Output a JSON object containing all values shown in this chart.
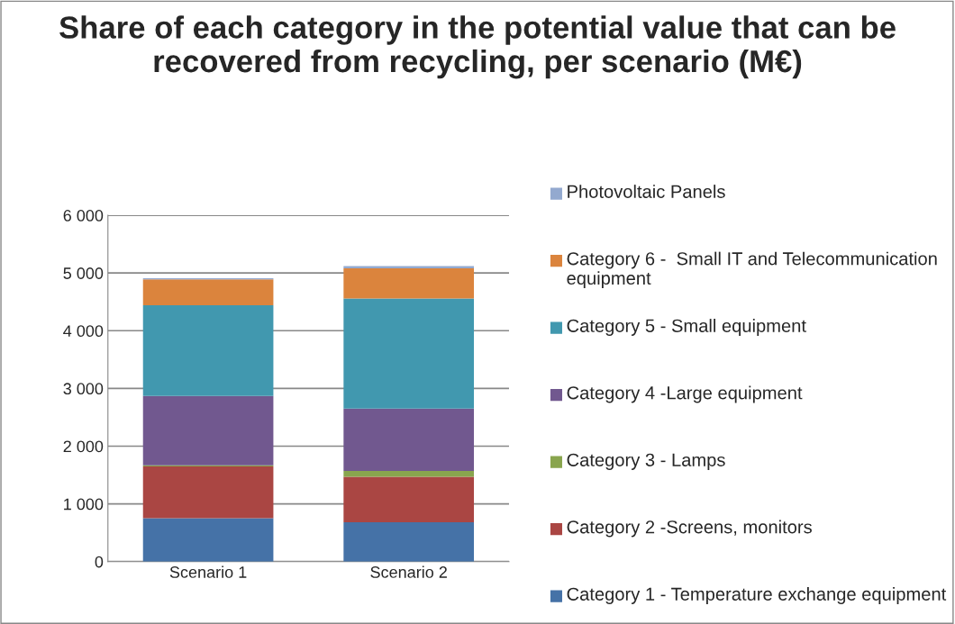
{
  "chart_data": {
    "type": "bar",
    "stacked": true,
    "title": "Share of each category in the potential value that can be recovered from recycling, per scenario (M€)",
    "categories": [
      "Scenario 1",
      "Scenario 2"
    ],
    "series": [
      {
        "name": "Category 1 - Temperature exchange equipment",
        "color": "#4572a7",
        "values": [
          750,
          680
        ]
      },
      {
        "name": "Category 2 -Screens, monitors",
        "color": "#aa4643",
        "values": [
          900,
          790
        ]
      },
      {
        "name": "Category 3 - Lamps",
        "color": "#89a54e",
        "values": [
          20,
          100
        ]
      },
      {
        "name": "Category 4 -Large equipment",
        "color": "#71588f",
        "values": [
          1200,
          1080
        ]
      },
      {
        "name": "Category 5 - Small equipment",
        "color": "#4198af",
        "values": [
          1570,
          1910
        ]
      },
      {
        "name": "Category 6 -  Small IT and Telecommunication equipment",
        "color": "#db843d",
        "values": [
          450,
          520
        ]
      },
      {
        "name": "Photovoltaic Panels",
        "color": "#93a9cf",
        "values": [
          20,
          40
        ]
      }
    ],
    "ylim": [
      0,
      6000
    ],
    "yticks": [
      {
        "value": 0,
        "label": "0"
      },
      {
        "value": 1000,
        "label": "1 000"
      },
      {
        "value": 2000,
        "label": "2 000"
      },
      {
        "value": 3000,
        "label": "3 000"
      },
      {
        "value": 4000,
        "label": "4 000"
      },
      {
        "value": 5000,
        "label": "5 000"
      },
      {
        "value": 6000,
        "label": "6 000"
      }
    ],
    "grid": "y",
    "legend": "right"
  }
}
